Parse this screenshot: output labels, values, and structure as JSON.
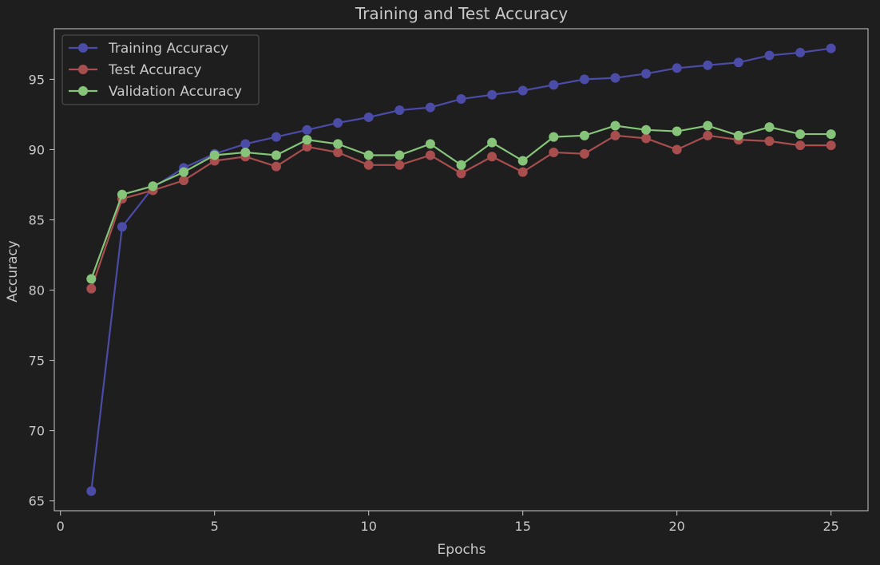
{
  "chart_data": {
    "type": "line",
    "title": "Training and Test Accuracy",
    "xlabel": "Epochs",
    "ylabel": "Accuracy",
    "xlim": [
      -0.2,
      26.2
    ],
    "ylim": [
      64.3,
      98.6
    ],
    "xticks": [
      0,
      5,
      10,
      15,
      20,
      25
    ],
    "yticks": [
      65,
      70,
      75,
      80,
      85,
      90,
      95
    ],
    "grid": false,
    "legend_position": "top-left",
    "background": "#1e1e1e",
    "axes_color": "#c8c8c8",
    "x": [
      1,
      2,
      3,
      4,
      5,
      6,
      7,
      8,
      9,
      10,
      11,
      12,
      13,
      14,
      15,
      16,
      17,
      18,
      19,
      20,
      21,
      22,
      23,
      24,
      25
    ],
    "series": [
      {
        "name": "Training Accuracy",
        "color": "#4b4ba8",
        "values": [
          65.7,
          84.5,
          87.3,
          88.7,
          89.7,
          90.4,
          90.9,
          91.4,
          91.9,
          92.3,
          92.8,
          93.0,
          93.6,
          93.9,
          94.2,
          94.6,
          95.0,
          95.1,
          95.4,
          95.8,
          96.0,
          96.2,
          96.7,
          96.9,
          97.2
        ]
      },
      {
        "name": "Test Accuracy",
        "color": "#a84e4e",
        "values": [
          80.1,
          86.5,
          87.1,
          87.8,
          89.2,
          89.5,
          88.8,
          90.2,
          89.8,
          88.9,
          88.9,
          89.6,
          88.3,
          89.5,
          88.4,
          89.8,
          89.7,
          91.0,
          90.8,
          90.0,
          91.0,
          90.7,
          90.6,
          90.3,
          90.3
        ]
      },
      {
        "name": "Validation Accuracy",
        "color": "#86c47a",
        "values": [
          80.8,
          86.8,
          87.4,
          88.4,
          89.6,
          89.8,
          89.6,
          90.7,
          90.4,
          89.6,
          89.6,
          90.4,
          88.9,
          90.5,
          89.2,
          90.9,
          91.0,
          91.7,
          91.4,
          91.3,
          91.7,
          91.0,
          91.6,
          91.1,
          91.1
        ]
      }
    ]
  }
}
